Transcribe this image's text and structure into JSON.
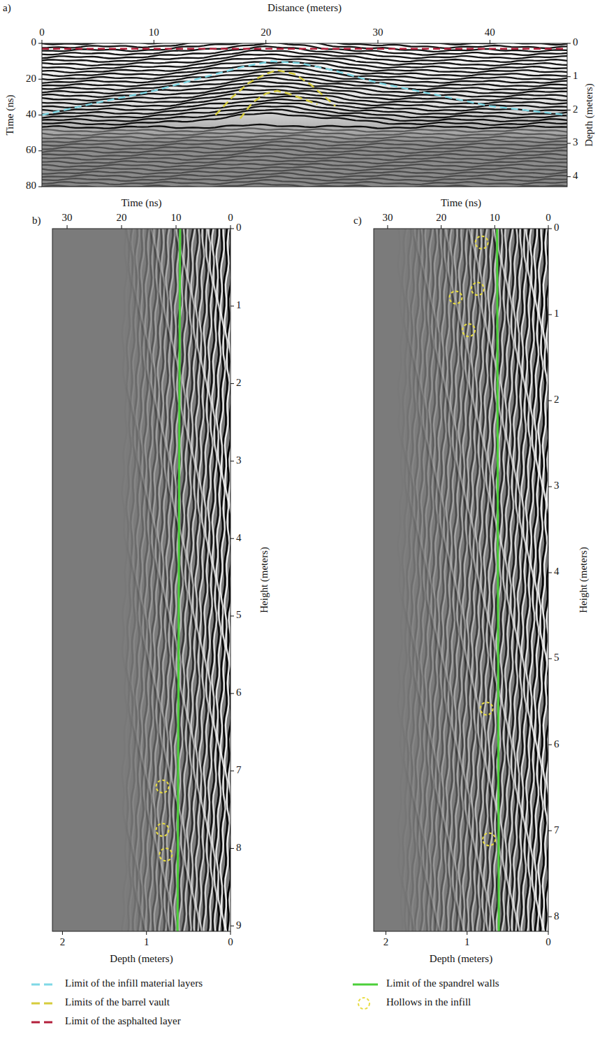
{
  "chart_data": [
    {
      "type": "radargram",
      "panel_label": "a)",
      "xlabel": "Distance (meters)",
      "ylabel": "Time (ns)",
      "y2label": "Depth (meters)",
      "xlim": [
        0,
        46.9
      ],
      "xticks": [
        0,
        10,
        20,
        30,
        40
      ],
      "ylim": [
        0,
        80
      ],
      "yticks": [
        0,
        20,
        40,
        60,
        80
      ],
      "y2lim": [
        0,
        4.3
      ],
      "y2ticks": [
        0,
        1,
        2,
        3,
        4
      ],
      "legend": "bottom",
      "series": [
        {
          "name": "Limit of the infill material layers",
          "type": "line",
          "color": "#7fd8e6",
          "line_style": "dashed",
          "x": [
            0,
            5,
            10,
            15,
            18,
            20.5,
            23,
            26,
            30,
            35,
            40,
            46.9
          ],
          "values": [
            40,
            33,
            26.5,
            18,
            13,
            10,
            11,
            15,
            22,
            28.5,
            35,
            40
          ]
        },
        {
          "name": "Limits of the barrel vault",
          "type": "line",
          "color": "#d6cc3c",
          "line_style": "dashed",
          "x": [
            15.5,
            17,
            18.5,
            20,
            21,
            22.5,
            24,
            26.2
          ],
          "values": [
            40,
            30,
            22,
            17,
            15,
            17,
            23,
            35
          ]
        },
        {
          "name": "Limits of the barrel vault",
          "type": "line",
          "color": "#d6cc3c",
          "line_style": "dashed",
          "x": [
            17.7,
            18.8,
            20,
            21,
            22,
            23.3,
            24.6
          ],
          "values": [
            42,
            33,
            28,
            26.5,
            28,
            31,
            34
          ]
        },
        {
          "name": "Limit of the asphalted layer",
          "type": "line",
          "color": "#b3203c",
          "line_style": "dashed",
          "x": [
            0,
            46.9
          ],
          "values": [
            3,
            3
          ]
        }
      ]
    },
    {
      "type": "radargram",
      "panel_label": "b)",
      "xlabel": "Time (ns)",
      "xlim": [
        32.7,
        0
      ],
      "xticks": [
        30,
        20,
        10,
        0
      ],
      "x2label": "Depth (meters)",
      "x2lim": [
        2.12,
        0
      ],
      "x2ticks": [
        2,
        1,
        0
      ],
      "ylabel": "Height (meters)",
      "ylim": [
        0,
        9.07
      ],
      "yticks": [
        0,
        1,
        2,
        3,
        4,
        5,
        6,
        7,
        8,
        9
      ],
      "series": [
        {
          "name": "Limit of the spandrel walls",
          "type": "line",
          "color": "#4ccf3a",
          "line_style": "solid",
          "axis": "x2",
          "x": [
            0.6,
            0.63
          ],
          "values": [
            0,
            9.07
          ]
        },
        {
          "name": "Hollows in the infill",
          "type": "scatter",
          "marker": "circle",
          "line_style": "dashed",
          "color": "#e8dc40",
          "axis": "x2",
          "x": [
            0.81,
            0.81,
            0.77
          ],
          "values": [
            7.2,
            7.76,
            8.08
          ]
        }
      ]
    },
    {
      "type": "radargram",
      "panel_label": "c)",
      "xlabel": "Time (ns)",
      "xlim": [
        32.6,
        0
      ],
      "xticks": [
        30,
        20,
        10,
        0
      ],
      "x2label": "Depth (meters)",
      "x2lim": [
        2.15,
        0
      ],
      "x2ticks": [
        2,
        1,
        0
      ],
      "ylabel": "Height (meters)",
      "ylim": [
        0,
        8.17
      ],
      "yticks": [
        0,
        1,
        2,
        3,
        4,
        5,
        6,
        7,
        8
      ],
      "series": [
        {
          "name": "Limit of the spandrel walls",
          "type": "line",
          "color": "#4ccf3a",
          "line_style": "solid",
          "axis": "x2",
          "x": [
            0.63,
            0.61
          ],
          "values": [
            0,
            8.17
          ]
        },
        {
          "name": "Hollows in the infill",
          "type": "scatter",
          "marker": "circle",
          "line_style": "dashed",
          "color": "#e8dc40",
          "axis": "x2",
          "x": [
            0.82,
            0.87,
            1.14,
            0.98,
            0.76,
            0.73
          ],
          "values": [
            0.16,
            0.7,
            0.8,
            1.18,
            5.58,
            7.1
          ]
        }
      ]
    }
  ]
}
